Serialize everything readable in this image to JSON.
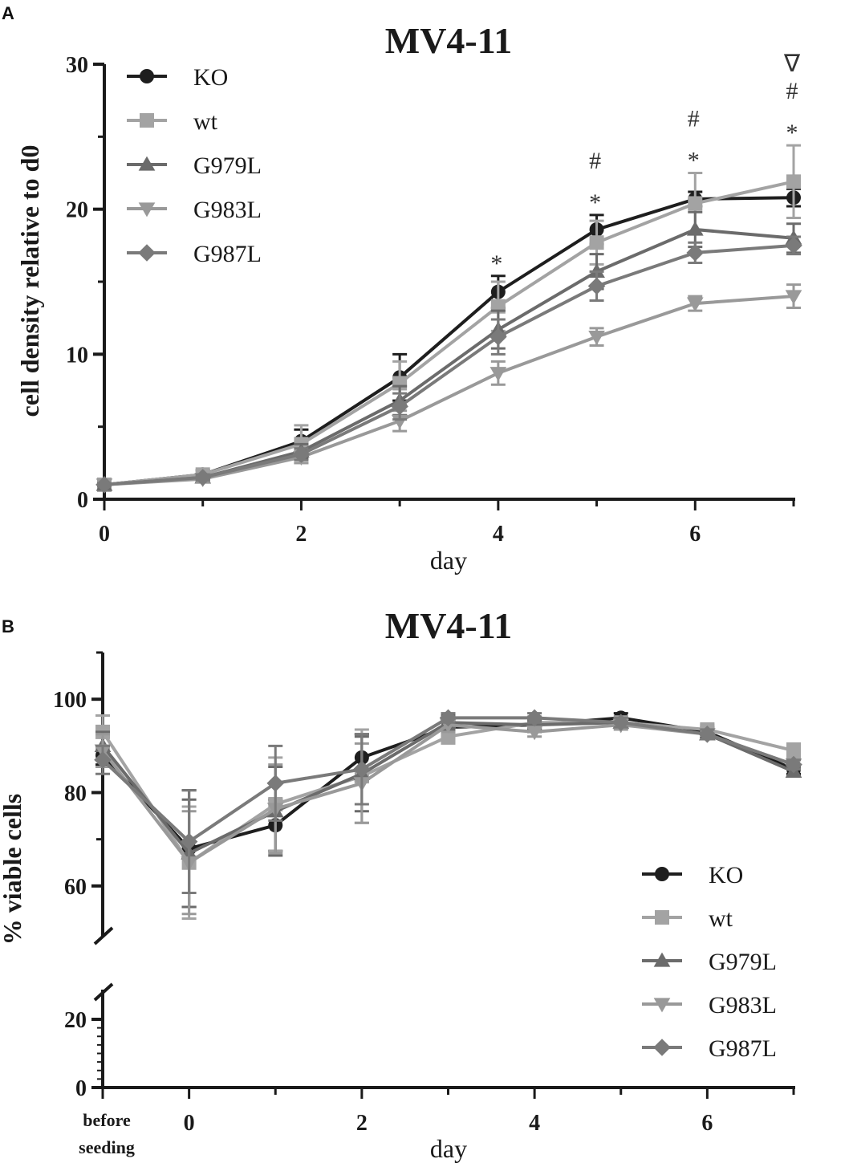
{
  "panels": {
    "a_label": "A",
    "b_label": "B"
  },
  "chart_data": [
    {
      "type": "line",
      "title": "MV4-11",
      "xlabel": "day",
      "ylabel": "cell density relative to d0",
      "xlim": [
        0,
        7
      ],
      "ylim": [
        0,
        30
      ],
      "x_ticks": [
        "0",
        "2",
        "4",
        "6"
      ],
      "y_ticks": [
        "0",
        "10",
        "20",
        "30"
      ],
      "x": [
        0,
        1,
        2,
        3,
        4,
        5,
        6,
        7
      ],
      "legend_position": "top-left",
      "series": [
        {
          "name": "KO",
          "marker": "circle",
          "color": "#1e1e1e",
          "values": [
            1.0,
            1.7,
            4.0,
            8.4,
            14.3,
            18.6,
            20.7,
            20.8
          ],
          "errors": [
            0.1,
            0.3,
            0.8,
            1.6,
            1.1,
            1.0,
            0.5,
            0.6
          ]
        },
        {
          "name": "wt",
          "marker": "square",
          "color": "#a3a3a3",
          "values": [
            1.0,
            1.7,
            3.8,
            8.0,
            13.3,
            17.7,
            20.4,
            21.9
          ],
          "errors": [
            0.1,
            0.3,
            1.3,
            1.5,
            1.7,
            1.5,
            2.1,
            2.5
          ]
        },
        {
          "name": "G979L",
          "marker": "triangle-up",
          "color": "#6b6b6b",
          "values": [
            1.0,
            1.5,
            3.3,
            6.8,
            11.7,
            15.7,
            18.6,
            18.0
          ],
          "errors": [
            0.1,
            0.2,
            0.5,
            1.0,
            1.3,
            1.2,
            1.2,
            1.0
          ]
        },
        {
          "name": "G983L",
          "marker": "triangle-down",
          "color": "#999999",
          "values": [
            1.0,
            1.4,
            2.9,
            5.4,
            8.7,
            11.2,
            13.5,
            14.0
          ],
          "errors": [
            0.1,
            0.2,
            0.4,
            0.7,
            0.8,
            0.6,
            0.5,
            0.8
          ]
        },
        {
          "name": "G987L",
          "marker": "diamond",
          "color": "#7a7a7a",
          "values": [
            1.0,
            1.5,
            3.1,
            6.4,
            11.2,
            14.7,
            17.0,
            17.5
          ],
          "errors": [
            0.1,
            0.2,
            0.4,
            0.9,
            1.2,
            1.0,
            0.7,
            0.6
          ]
        }
      ],
      "annotations": [
        {
          "x": 4,
          "lines": [
            "*"
          ]
        },
        {
          "x": 5,
          "lines": [
            "#",
            "*"
          ]
        },
        {
          "x": 6,
          "lines": [
            "#",
            "*"
          ]
        },
        {
          "x": 7,
          "lines": [
            "∇",
            "#",
            "*"
          ]
        }
      ]
    },
    {
      "type": "line",
      "title": "MV4-11",
      "xlabel": "day",
      "ylabel": "% viable cells",
      "y_axis_break": [
        20,
        50
      ],
      "ylim": [
        0,
        110
      ],
      "x_ticks": [
        {
          "x": -1,
          "label": "before seeding",
          "lines": [
            "before",
            "seeding"
          ]
        },
        {
          "x": 0,
          "label": "0"
        },
        {
          "x": 2,
          "label": "2"
        },
        {
          "x": 4,
          "label": "4"
        },
        {
          "x": 6,
          "label": "6"
        }
      ],
      "y_ticks": [
        "0",
        "20",
        "60",
        "80",
        "100"
      ],
      "x": [
        -1,
        0,
        1,
        2,
        3,
        4,
        5,
        6,
        7
      ],
      "legend_position": "bottom-right",
      "series": [
        {
          "name": "KO",
          "marker": "circle",
          "color": "#1e1e1e",
          "values": [
            88.0,
            68.0,
            73.0,
            87.5,
            94.0,
            94.5,
            96.0,
            93.0,
            85.0
          ],
          "errors": [
            2.0,
            12.5,
            5.5,
            5.0,
            1.5,
            1.5,
            1.0,
            1.0,
            1.0
          ]
        },
        {
          "name": "wt",
          "marker": "square",
          "color": "#a3a3a3",
          "values": [
            93.0,
            65.0,
            77.5,
            83.5,
            92.0,
            95.0,
            95.0,
            93.5,
            89.0
          ],
          "errors": [
            3.5,
            12.0,
            10.0,
            10.0,
            1.5,
            1.0,
            1.0,
            1.0,
            1.5
          ]
        },
        {
          "name": "G979L",
          "marker": "triangle-up",
          "color": "#6b6b6b",
          "values": [
            90.0,
            67.0,
            76.0,
            84.0,
            95.0,
            94.5,
            95.0,
            92.5,
            84.5
          ],
          "errors": [
            3.0,
            11.5,
            9.5,
            8.0,
            1.5,
            1.0,
            1.0,
            1.0,
            1.0
          ]
        },
        {
          "name": "G983L",
          "marker": "triangle-down",
          "color": "#999999",
          "values": [
            89.0,
            65.0,
            76.5,
            82.0,
            94.5,
            93.0,
            94.5,
            92.5,
            86.0
          ],
          "errors": [
            3.5,
            11.0,
            9.5,
            8.5,
            1.5,
            1.0,
            1.0,
            1.0,
            1.0
          ]
        },
        {
          "name": "G987L",
          "marker": "diamond",
          "color": "#7a7a7a",
          "values": [
            87.0,
            69.5,
            82.0,
            85.0,
            96.0,
            96.0,
            95.0,
            92.5,
            86.0
          ],
          "errors": [
            3.0,
            11.0,
            8.0,
            7.5,
            1.0,
            1.0,
            1.0,
            1.0,
            1.0
          ]
        }
      ]
    }
  ]
}
